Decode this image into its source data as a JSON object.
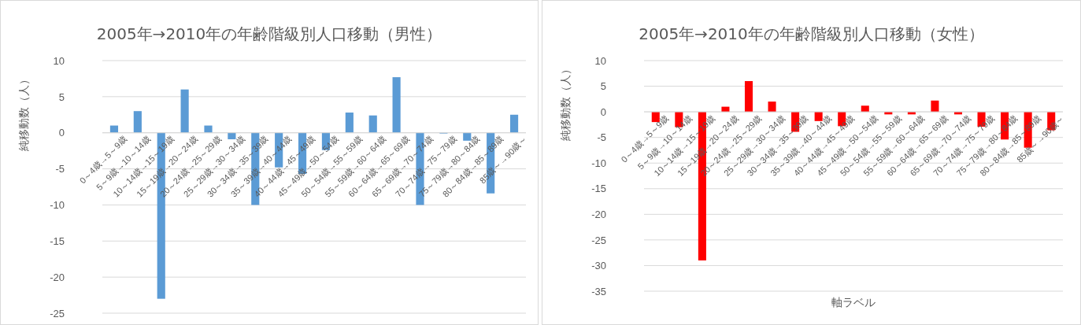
{
  "chart_data": [
    {
      "type": "bar",
      "title": "2005年→2010年の年齢階級別人口移動（男性）",
      "ylabel": "純移動数（人）",
      "categories": [
        "0～4歳→5～9歳",
        "5～9歳→10～14歳",
        "10～14歳→15～19歳",
        "15～19歳→20～24歳",
        "20～24歳→25～29歳",
        "25～29歳→30～34歳",
        "30～34歳→35～39歳",
        "35～39歳→40～44歳",
        "40～44歳→45～49歳",
        "45～49歳→50～54歳",
        "50～54歳→55～59歳",
        "55～59歳→60～64歳",
        "60～64歳→65～69歳",
        "65～69歳→70～74歳",
        "70～74歳→75～79歳",
        "75～79歳→80～84歳",
        "80～84歳→85～89歳",
        "85歳～→90歳～"
      ],
      "values": [
        1,
        3,
        -23,
        6,
        1,
        -0.9,
        -10,
        -4.8,
        -5.7,
        -2.4,
        2.8,
        2.4,
        7.7,
        -10,
        -0.1,
        -1.1,
        -8.4,
        2.5
      ],
      "color": "#5b9bd5",
      "ylim": [
        -25,
        10
      ],
      "yticks": [
        -25,
        -20,
        -15,
        -10,
        -5,
        0,
        5,
        10
      ],
      "grid": "y"
    },
    {
      "type": "bar",
      "title": "2005年→2010年の年齢階級別人口移動（女性）",
      "ylabel": "純移動数（人）",
      "xlabel": "軸ラベル",
      "categories": [
        "0～4歳→5～9歳",
        "5～9歳→10～14歳",
        "10～14歳→15～19歳",
        "15～19歳→20～24歳",
        "20～24歳→25～29歳",
        "25～29歳→30～34歳",
        "30～34歳→35～39歳",
        "35～39歳→40～44歳",
        "40～44歳→45～49歳",
        "45～49歳→50～54歳",
        "50～54歳→55～59歳",
        "55～59歳→60～64歳",
        "60～64歳→65～69歳",
        "65～69歳→70～74歳",
        "70～74歳→75～79歳",
        "75～79歳→80～84歳",
        "80～84歳→85～89歳",
        "85歳～→90歳～"
      ],
      "values": [
        -2,
        -3,
        -29,
        1,
        6,
        2,
        -3.9,
        -1.8,
        -2.8,
        1.2,
        -0.5,
        -0.5,
        2.2,
        -0.5,
        -2.9,
        -5.4,
        -7,
        -3.6
      ],
      "color": "#ff0000",
      "ylim": [
        -35,
        10
      ],
      "yticks": [
        -35,
        -30,
        -25,
        -20,
        -15,
        -10,
        -5,
        0,
        5,
        10
      ],
      "grid": "y"
    }
  ]
}
